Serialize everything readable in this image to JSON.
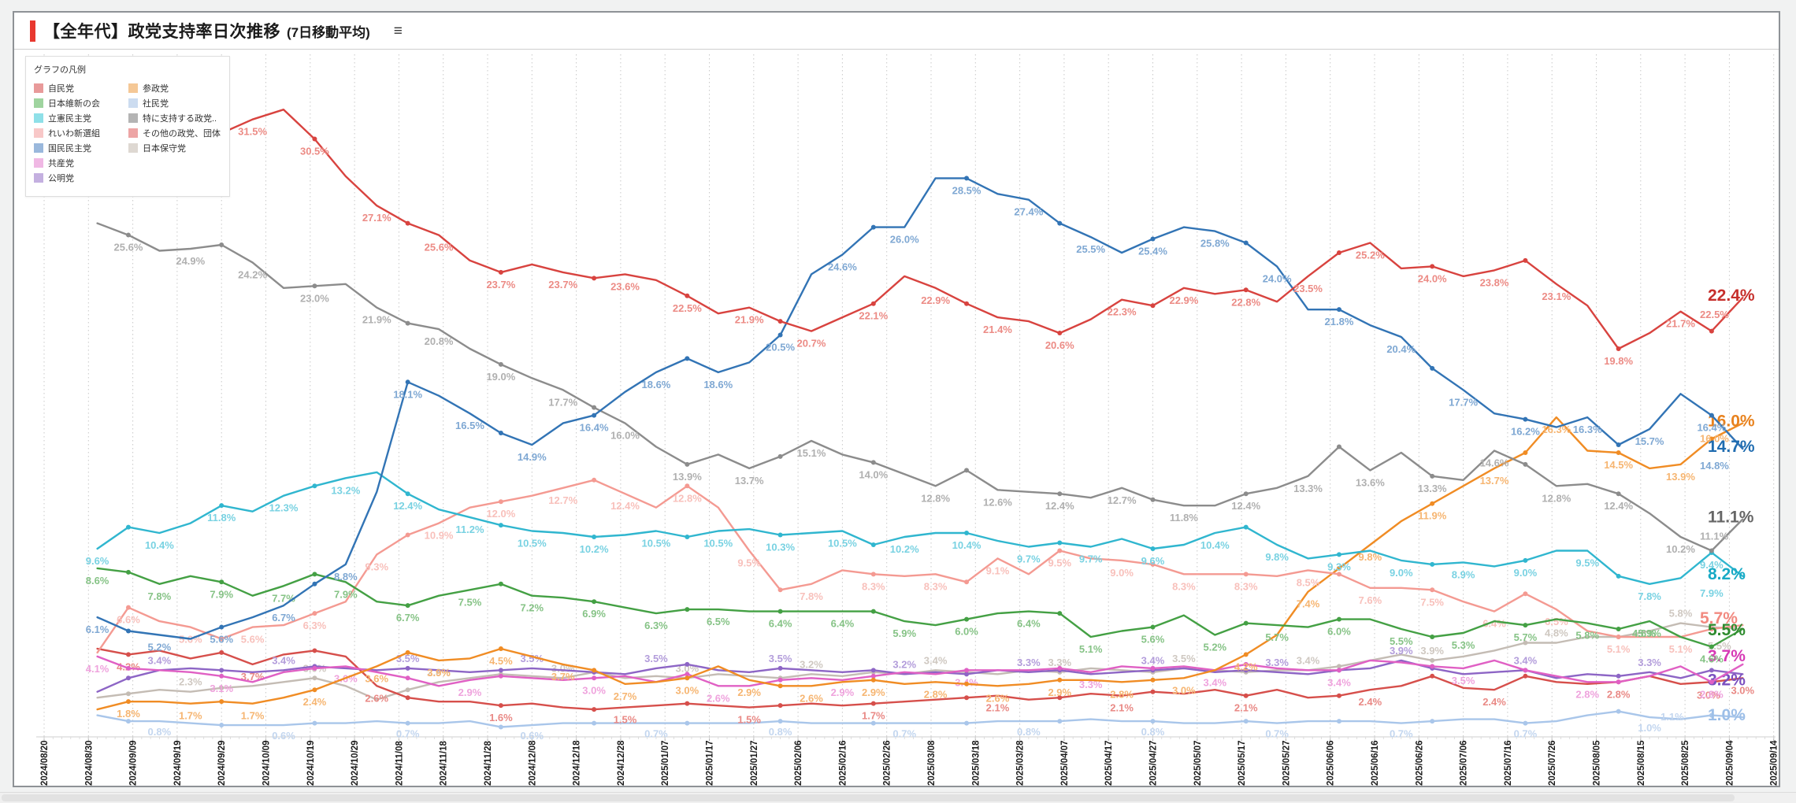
{
  "header": {
    "title": "【全年代】政党支持率日次推移",
    "subtitle": "(7日移動平均)",
    "menu_icon": "≡",
    "accent_color": "#e8382f"
  },
  "legend": {
    "title": "グラフの凡例",
    "columns": [
      [
        {
          "label": "自民党",
          "swatch": "#e89a9a"
        },
        {
          "label": "日本維新の会",
          "swatch": "#9fd49f"
        },
        {
          "label": "立憲民主党",
          "swatch": "#8fe0e8"
        },
        {
          "label": "れいわ新選組",
          "swatch": "#f8c8c8"
        },
        {
          "label": "国民民主党",
          "swatch": "#9ab8dc"
        },
        {
          "label": "共産党",
          "swatch": "#f0b8e4"
        },
        {
          "label": "公明党",
          "swatch": "#c4b0e0"
        }
      ],
      [
        {
          "label": "参政党",
          "swatch": "#f5c896"
        },
        {
          "label": "社民党",
          "swatch": "#ccdcf0"
        },
        {
          "label": "特に支持する政党..",
          "swatch": "#b4b4b4"
        },
        {
          "label": "その他の政党、団体",
          "swatch": "#eda5a5"
        },
        {
          "label": "日本保守党",
          "swatch": "#ded8d2"
        }
      ]
    ]
  },
  "chart_data": {
    "type": "line",
    "title": "【全年代】政党支持率日次推移 (7日移動平均)",
    "xlabel": "",
    "ylabel": "支持率 (%)",
    "ylim": [
      0,
      33.5
    ],
    "grid": "vertical-dotted",
    "legend_position": "top-left",
    "x_axis": {
      "start": "2024/08/20",
      "end": "2025/09/14",
      "interval_days": 10,
      "tick_labels": [
        "2024/08/20",
        "2024/08/30",
        "2024/09/09",
        "2024/09/19",
        "2024/09/29",
        "2024/10/09",
        "2024/10/19",
        "2024/10/29",
        "2024/11/08",
        "2024/11/18",
        "2024/11/28",
        "2024/12/08",
        "2024/12/18",
        "2024/12/28",
        "2025/01/07",
        "2025/01/17",
        "2025/01/27",
        "2025/02/06",
        "2025/02/16",
        "2025/02/26",
        "2025/03/08",
        "2025/03/18",
        "2025/03/28",
        "2025/04/07",
        "2025/04/17",
        "2025/04/27",
        "2025/05/07",
        "2025/05/17",
        "2025/05/27",
        "2025/06/06",
        "2025/06/16",
        "2025/06/26",
        "2025/07/06",
        "2025/07/16",
        "2025/07/26",
        "2025/08/05",
        "2025/08/15",
        "2025/08/25",
        "2025/09/04",
        "2025/09/14"
      ]
    },
    "sample_dates": [
      "2024/09/01",
      "2024/09/08",
      "2024/09/15",
      "2024/09/22",
      "2024/09/29",
      "2024/10/06",
      "2024/10/13",
      "2024/10/20",
      "2024/10/27",
      "2024/11/03",
      "2024/11/10",
      "2024/11/17",
      "2024/11/24",
      "2024/12/01",
      "2024/12/08",
      "2024/12/15",
      "2024/12/22",
      "2024/12/29",
      "2025/01/05",
      "2025/01/12",
      "2025/01/19",
      "2025/01/26",
      "2025/02/02",
      "2025/02/09",
      "2025/02/16",
      "2025/02/23",
      "2025/03/02",
      "2025/03/09",
      "2025/03/16",
      "2025/03/23",
      "2025/03/30",
      "2025/04/06",
      "2025/04/13",
      "2025/04/20",
      "2025/04/27",
      "2025/05/04",
      "2025/05/11",
      "2025/05/18",
      "2025/05/25",
      "2025/06/01",
      "2025/06/08",
      "2025/06/15",
      "2025/06/22",
      "2025/06/29",
      "2025/07/06",
      "2025/07/13",
      "2025/07/20",
      "2025/07/27",
      "2025/08/03",
      "2025/08/10",
      "2025/08/17",
      "2025/08/24",
      "2025/08/31",
      "2025/09/07"
    ],
    "series": [
      {
        "name": "社民党",
        "color": "#a9c6ea",
        "label_color": "#c3d6ef",
        "end_color": "#9dbfe8",
        "end_label": "1.0%",
        "near_label": "1.1%",
        "near_dx": -60,
        "near_dy": 4,
        "label_every": 4,
        "label_offset": 2,
        "label_dy": 18,
        "values": [
          1.1,
          0.8,
          0.8,
          0.7,
          0.6,
          0.6,
          0.6,
          0.7,
          0.7,
          0.8,
          0.7,
          0.7,
          0.8,
          0.5,
          0.6,
          0.7,
          0.7,
          0.7,
          0.7,
          0.7,
          0.7,
          0.7,
          0.8,
          0.7,
          0.7,
          0.7,
          0.7,
          0.7,
          0.7,
          0.8,
          0.8,
          0.8,
          0.9,
          0.8,
          0.8,
          0.7,
          0.7,
          0.8,
          0.7,
          0.8,
          0.8,
          0.8,
          0.7,
          0.8,
          0.9,
          0.9,
          0.7,
          0.8,
          1.1,
          1.3,
          1.0,
          0.9,
          1.1,
          1.0
        ]
      },
      {
        "name": "日本保守党",
        "color": "#c4bcb4",
        "label_color": "#cfc8c1",
        "end_color": "#c9c2bb",
        "end_label": "",
        "near_label": "5.5%",
        "near_dx": 0,
        "near_dy": 26,
        "label_every": 4,
        "label_offset": 3,
        "label_dy": -8,
        "values": [
          2.0,
          2.2,
          2.4,
          2.3,
          2.5,
          2.6,
          2.8,
          3.0,
          2.6,
          1.9,
          2.4,
          2.8,
          3.0,
          3.2,
          3.1,
          3.0,
          3.3,
          3.0,
          3.1,
          3.0,
          3.2,
          3.1,
          3.0,
          3.2,
          3.1,
          3.3,
          3.2,
          3.4,
          3.3,
          3.2,
          3.4,
          3.3,
          3.5,
          3.4,
          3.3,
          3.5,
          3.4,
          3.3,
          3.4,
          3.4,
          3.6,
          3.9,
          4.2,
          3.9,
          4.1,
          4.4,
          4.8,
          4.8,
          5.1,
          5.1,
          5.4,
          5.8,
          5.6,
          5.5
        ]
      },
      {
        "name": "その他の政党、団体",
        "color": "#d64f4b",
        "label_color": "#e98985",
        "end_color": "#e06a66",
        "end_label": "",
        "near_label": "3.0%",
        "near_dx": -14,
        "near_dy": 26,
        "label_every": 4,
        "label_offset": 1,
        "label_dy": 20,
        "values": [
          4.5,
          4.2,
          4.4,
          4.0,
          4.3,
          3.7,
          4.2,
          4.4,
          4.1,
          2.6,
          2.0,
          1.8,
          1.8,
          1.6,
          1.7,
          1.5,
          1.4,
          1.5,
          1.6,
          1.7,
          1.6,
          1.5,
          1.6,
          1.7,
          1.6,
          1.7,
          1.8,
          1.9,
          2.0,
          2.1,
          1.9,
          2.0,
          2.2,
          2.1,
          2.3,
          2.2,
          2.4,
          2.1,
          2.4,
          2.0,
          2.1,
          2.4,
          2.6,
          3.1,
          2.5,
          2.4,
          3.1,
          2.8,
          2.7,
          2.8,
          3.1,
          2.7,
          2.8,
          3.0
        ]
      },
      {
        "name": "公明党",
        "color": "#8d65c5",
        "label_color": "#b39ddb",
        "end_color": "#7a4fc0",
        "end_label": "3.2%",
        "end_dy": 10,
        "label_every": 4,
        "label_offset": 2,
        "label_dy": -8,
        "values": [
          2.3,
          3.0,
          3.4,
          3.5,
          3.4,
          3.3,
          3.4,
          3.6,
          3.5,
          3.4,
          3.5,
          3.4,
          3.3,
          3.4,
          3.5,
          3.4,
          3.3,
          3.2,
          3.5,
          3.7,
          3.4,
          3.3,
          3.5,
          3.4,
          3.3,
          3.4,
          3.2,
          3.3,
          3.2,
          3.4,
          3.3,
          3.4,
          3.2,
          3.3,
          3.4,
          3.5,
          3.3,
          3.4,
          3.3,
          3.2,
          3.4,
          3.5,
          3.9,
          3.5,
          3.2,
          3.3,
          3.4,
          3.0,
          3.2,
          3.1,
          3.3,
          3.0,
          3.4,
          3.2
        ]
      },
      {
        "name": "共産党",
        "color": "#e060c4",
        "label_color": "#efa3dd",
        "end_color": "#d63ab5",
        "end_label": "3.7%",
        "end_dy": -8,
        "label_every": 4,
        "label_offset": 0,
        "label_dy": 20,
        "values": [
          4.1,
          3.5,
          3.4,
          3.3,
          3.1,
          2.8,
          3.3,
          3.5,
          3.6,
          3.3,
          3.0,
          2.6,
          2.9,
          3.1,
          3.0,
          2.9,
          3.0,
          3.1,
          2.8,
          3.2,
          2.6,
          2.6,
          2.9,
          3.0,
          2.9,
          3.1,
          3.3,
          3.2,
          3.4,
          3.4,
          3.4,
          3.5,
          3.3,
          3.6,
          3.5,
          3.6,
          3.4,
          3.7,
          3.5,
          3.4,
          3.4,
          3.9,
          3.8,
          3.6,
          3.5,
          3.9,
          3.4,
          3.1,
          2.8,
          2.8,
          3.1,
          3.6,
          2.8,
          3.7
        ]
      },
      {
        "name": "参政党",
        "color": "#f08c24",
        "label_color": "#f6b571",
        "end_color": "#e8821e",
        "end_label": "16.0%",
        "near_label": "16.0%",
        "near_dx": -10,
        "near_dy": 24,
        "label_every": 2,
        "label_offset": 1,
        "label_dy": 20,
        "values": [
          1.4,
          1.8,
          1.8,
          1.7,
          1.8,
          1.7,
          2.0,
          2.4,
          3.0,
          3.6,
          4.3,
          3.9,
          4.0,
          4.5,
          4.1,
          3.7,
          3.4,
          2.7,
          2.8,
          3.0,
          3.6,
          2.9,
          2.6,
          2.6,
          2.8,
          2.9,
          2.7,
          2.8,
          2.7,
          2.6,
          2.7,
          2.9,
          2.9,
          2.8,
          2.9,
          3.0,
          3.4,
          4.2,
          5.2,
          7.4,
          8.6,
          9.8,
          11.0,
          11.9,
          12.8,
          13.7,
          14.5,
          16.3,
          14.6,
          14.5,
          13.7,
          13.9,
          15.2,
          16.0
        ]
      },
      {
        "name": "れいわ新選組",
        "color": "#f49a92",
        "label_color": "#f8c0bb",
        "end_color": "#f28a80",
        "end_label": "5.7%",
        "end_dx": -10,
        "end_dy": -6,
        "label_every": 2,
        "label_offset": 1,
        "label_dy": 20,
        "values": [
          4.3,
          6.6,
          5.9,
          5.6,
          5.0,
          5.6,
          5.7,
          6.3,
          6.9,
          9.3,
          10.3,
          10.9,
          11.7,
          12.0,
          12.3,
          12.7,
          13.1,
          12.4,
          11.7,
          12.8,
          11.7,
          9.5,
          7.5,
          7.8,
          8.5,
          8.3,
          8.2,
          8.3,
          7.9,
          9.1,
          8.3,
          9.5,
          9.1,
          9.0,
          8.8,
          8.3,
          8.3,
          8.3,
          8.2,
          8.5,
          8.3,
          7.6,
          7.6,
          7.5,
          6.9,
          6.4,
          7.3,
          6.5,
          5.4,
          5.1,
          5.1,
          5.1,
          5.5,
          5.7
        ]
      },
      {
        "name": "日本維新の会",
        "color": "#44a044",
        "label_color": "#86c386",
        "end_color": "#2e8b2e",
        "end_label": "5.5%",
        "end_dy": 4,
        "near_label": "4.6%",
        "near_dx": -96,
        "near_dy": 10,
        "label_every": 2,
        "label_offset": 0,
        "label_dy": 20,
        "values": [
          8.6,
          8.4,
          7.8,
          8.2,
          7.9,
          7.2,
          7.7,
          8.3,
          7.9,
          6.9,
          6.7,
          7.2,
          7.5,
          7.8,
          7.2,
          7.1,
          6.9,
          6.6,
          6.3,
          6.5,
          6.5,
          6.4,
          6.4,
          6.4,
          6.4,
          6.4,
          5.9,
          5.7,
          6.0,
          6.3,
          6.4,
          6.3,
          5.1,
          5.4,
          5.6,
          6.2,
          5.2,
          5.8,
          5.7,
          5.6,
          6.0,
          6.0,
          5.5,
          5.1,
          5.3,
          5.9,
          5.7,
          6.0,
          5.8,
          5.5,
          5.9,
          5.1,
          4.6,
          5.5
        ]
      },
      {
        "name": "立憲民主党",
        "color": "#30b6cf",
        "label_color": "#79d2e2",
        "end_color": "#18aac5",
        "end_label": "8.2%",
        "near_label": "7.9%",
        "near_dx": -10,
        "near_dy": 26,
        "label_every": 2,
        "label_offset": 0,
        "label_dy": 20,
        "values": [
          9.6,
          10.7,
          10.4,
          10.9,
          11.8,
          11.5,
          12.3,
          12.8,
          13.2,
          13.5,
          12.4,
          11.6,
          11.2,
          10.8,
          10.5,
          10.4,
          10.2,
          10.3,
          10.5,
          10.2,
          10.5,
          10.6,
          10.3,
          10.4,
          10.5,
          9.8,
          10.2,
          10.4,
          10.4,
          10.0,
          9.7,
          9.9,
          9.7,
          10.1,
          9.6,
          9.8,
          10.4,
          10.7,
          9.8,
          9.1,
          9.3,
          9.5,
          9.0,
          8.8,
          8.9,
          8.7,
          9.0,
          9.5,
          9.5,
          8.2,
          7.8,
          8.1,
          9.4,
          8.2
        ]
      },
      {
        "name": "特に支持する政党..",
        "color": "#8c8c8c",
        "label_color": "#b0b0b0",
        "end_color": "#666666",
        "end_label": "11.1%",
        "near_label": "11.1%",
        "near_dx": -10,
        "near_dy": 26,
        "label_every": 2,
        "label_offset": 1,
        "label_dy": 20,
        "values": [
          26.2,
          25.6,
          24.8,
          24.9,
          25.1,
          24.2,
          22.9,
          23.0,
          23.1,
          21.9,
          21.1,
          20.8,
          19.8,
          19.0,
          18.3,
          17.7,
          16.8,
          16.0,
          14.8,
          13.9,
          14.4,
          13.7,
          14.3,
          15.1,
          14.4,
          14.0,
          13.4,
          12.8,
          13.6,
          12.6,
          12.5,
          12.4,
          12.2,
          12.7,
          12.1,
          11.8,
          11.8,
          12.4,
          12.7,
          13.3,
          14.8,
          13.6,
          14.5,
          13.3,
          13.1,
          14.6,
          13.9,
          12.8,
          12.9,
          12.4,
          11.4,
          10.2,
          9.5,
          11.1
        ]
      },
      {
        "name": "国民民主党",
        "color": "#3274b5",
        "label_color": "#7fa8d3",
        "end_color": "#1f6cb0",
        "end_label": "14.7%",
        "near_label": "14.8%",
        "near_dx": -10,
        "near_dy": 26,
        "label_every": 2,
        "label_offset": 0,
        "label_dy": 20,
        "values": [
          6.1,
          5.4,
          5.2,
          5.0,
          5.6,
          6.1,
          6.7,
          7.8,
          8.8,
          12.5,
          18.1,
          17.4,
          16.5,
          15.5,
          14.9,
          16.0,
          16.4,
          17.6,
          18.6,
          19.3,
          18.6,
          19.1,
          20.5,
          23.6,
          24.6,
          26.0,
          26.0,
          28.5,
          28.5,
          27.7,
          27.4,
          26.2,
          25.5,
          24.7,
          25.4,
          26.0,
          25.8,
          25.2,
          24.0,
          21.8,
          21.8,
          21.0,
          20.4,
          18.8,
          17.7,
          16.5,
          16.2,
          15.8,
          16.3,
          14.9,
          15.7,
          17.5,
          16.4,
          14.7
        ]
      },
      {
        "name": "自民党",
        "color": "#d8433f",
        "label_color": "#ec8b85",
        "end_color": "#c62f2b",
        "end_label": "22.4%",
        "near_label": "22.5%",
        "near_dx": -10,
        "near_dy": 26,
        "label_every": 2,
        "label_offset": 1,
        "label_dy": 20,
        "values": [
          29.7,
          29.1,
          29.5,
          29.9,
          30.8,
          31.5,
          32.0,
          30.5,
          28.6,
          27.1,
          26.2,
          25.6,
          24.3,
          23.7,
          24.1,
          23.7,
          23.4,
          23.6,
          23.3,
          22.5,
          21.6,
          21.9,
          21.2,
          20.7,
          21.4,
          22.1,
          23.5,
          22.9,
          22.1,
          21.4,
          21.2,
          20.6,
          21.3,
          22.3,
          22.0,
          22.9,
          22.6,
          22.8,
          22.2,
          23.5,
          24.7,
          25.2,
          23.9,
          24.0,
          23.5,
          23.8,
          24.3,
          23.1,
          22.0,
          19.8,
          20.6,
          21.7,
          20.7,
          22.4
        ]
      }
    ]
  },
  "scrollbar": {
    "orientation": "horizontal"
  }
}
